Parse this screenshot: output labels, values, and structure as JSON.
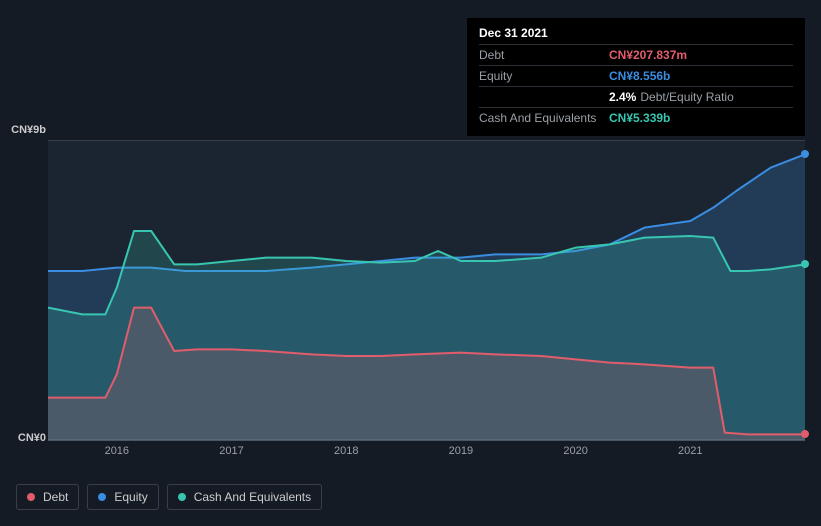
{
  "tooltip": {
    "date": "Dec 31 2021",
    "rows": [
      {
        "label": "Debt",
        "value": "CN¥207.837m",
        "color": "#e15d6b"
      },
      {
        "label": "Equity",
        "value": "CN¥8.556b",
        "color": "#3a8de0"
      },
      {
        "label": "",
        "value": "2.4%",
        "suffix": "Debt/Equity Ratio",
        "color": "#ffffff"
      },
      {
        "label": "Cash And Equivalents",
        "value": "CN¥5.339b",
        "color": "#38c6b0"
      }
    ]
  },
  "chart": {
    "type": "area",
    "background_color": "#1b2531",
    "page_background": "#151b24",
    "grid_color": "#3a3f47",
    "ylim": [
      0,
      9
    ],
    "y_unit_prefix": "CN¥",
    "y_unit_suffix": "b",
    "y_labels": {
      "top": "CN¥9b",
      "bottom": "CN¥0"
    },
    "x_ticks": [
      "2016",
      "2017",
      "2018",
      "2019",
      "2020",
      "2021"
    ],
    "x_range": [
      2015.4,
      2022.0
    ],
    "series": [
      {
        "name": "Equity",
        "color": "#3a8de0",
        "fill_opacity": 0.22,
        "line_width": 2,
        "data": [
          [
            2015.4,
            5.1
          ],
          [
            2015.7,
            5.1
          ],
          [
            2016.0,
            5.2
          ],
          [
            2016.3,
            5.2
          ],
          [
            2016.6,
            5.1
          ],
          [
            2017.0,
            5.1
          ],
          [
            2017.3,
            5.1
          ],
          [
            2017.7,
            5.2
          ],
          [
            2018.0,
            5.3
          ],
          [
            2018.3,
            5.4
          ],
          [
            2018.6,
            5.5
          ],
          [
            2019.0,
            5.5
          ],
          [
            2019.3,
            5.6
          ],
          [
            2019.7,
            5.6
          ],
          [
            2020.0,
            5.7
          ],
          [
            2020.3,
            5.9
          ],
          [
            2020.6,
            6.4
          ],
          [
            2021.0,
            6.6
          ],
          [
            2021.2,
            7.0
          ],
          [
            2021.4,
            7.5
          ],
          [
            2021.7,
            8.2
          ],
          [
            2022.0,
            8.6
          ]
        ]
      },
      {
        "name": "Cash And Equivalents",
        "color": "#38c6b0",
        "fill_opacity": 0.22,
        "line_width": 2,
        "data": [
          [
            2015.4,
            4.0
          ],
          [
            2015.7,
            3.8
          ],
          [
            2015.9,
            3.8
          ],
          [
            2016.0,
            4.6
          ],
          [
            2016.15,
            6.3
          ],
          [
            2016.3,
            6.3
          ],
          [
            2016.5,
            5.3
          ],
          [
            2016.7,
            5.3
          ],
          [
            2017.0,
            5.4
          ],
          [
            2017.3,
            5.5
          ],
          [
            2017.7,
            5.5
          ],
          [
            2018.0,
            5.4
          ],
          [
            2018.3,
            5.35
          ],
          [
            2018.6,
            5.4
          ],
          [
            2018.8,
            5.7
          ],
          [
            2019.0,
            5.4
          ],
          [
            2019.3,
            5.4
          ],
          [
            2019.7,
            5.5
          ],
          [
            2020.0,
            5.8
          ],
          [
            2020.3,
            5.9
          ],
          [
            2020.6,
            6.1
          ],
          [
            2021.0,
            6.15
          ],
          [
            2021.2,
            6.1
          ],
          [
            2021.35,
            5.1
          ],
          [
            2021.5,
            5.1
          ],
          [
            2021.7,
            5.15
          ],
          [
            2022.0,
            5.3
          ]
        ]
      },
      {
        "name": "Debt",
        "color": "#e15d6b",
        "fill_opacity": 0.2,
        "line_width": 2,
        "data": [
          [
            2015.4,
            1.3
          ],
          [
            2015.7,
            1.3
          ],
          [
            2015.9,
            1.3
          ],
          [
            2016.0,
            2.0
          ],
          [
            2016.15,
            4.0
          ],
          [
            2016.3,
            4.0
          ],
          [
            2016.5,
            2.7
          ],
          [
            2016.7,
            2.75
          ],
          [
            2017.0,
            2.75
          ],
          [
            2017.3,
            2.7
          ],
          [
            2017.7,
            2.6
          ],
          [
            2018.0,
            2.55
          ],
          [
            2018.3,
            2.55
          ],
          [
            2018.6,
            2.6
          ],
          [
            2019.0,
            2.65
          ],
          [
            2019.3,
            2.6
          ],
          [
            2019.7,
            2.55
          ],
          [
            2020.0,
            2.45
          ],
          [
            2020.3,
            2.35
          ],
          [
            2020.6,
            2.3
          ],
          [
            2021.0,
            2.2
          ],
          [
            2021.2,
            2.2
          ],
          [
            2021.3,
            0.25
          ],
          [
            2021.5,
            0.2
          ],
          [
            2021.7,
            0.2
          ],
          [
            2022.0,
            0.2
          ]
        ]
      }
    ]
  },
  "legend": {
    "items": [
      {
        "label": "Debt",
        "color": "#e15d6b"
      },
      {
        "label": "Equity",
        "color": "#3a8de0"
      },
      {
        "label": "Cash And Equivalents",
        "color": "#38c6b0"
      }
    ]
  }
}
